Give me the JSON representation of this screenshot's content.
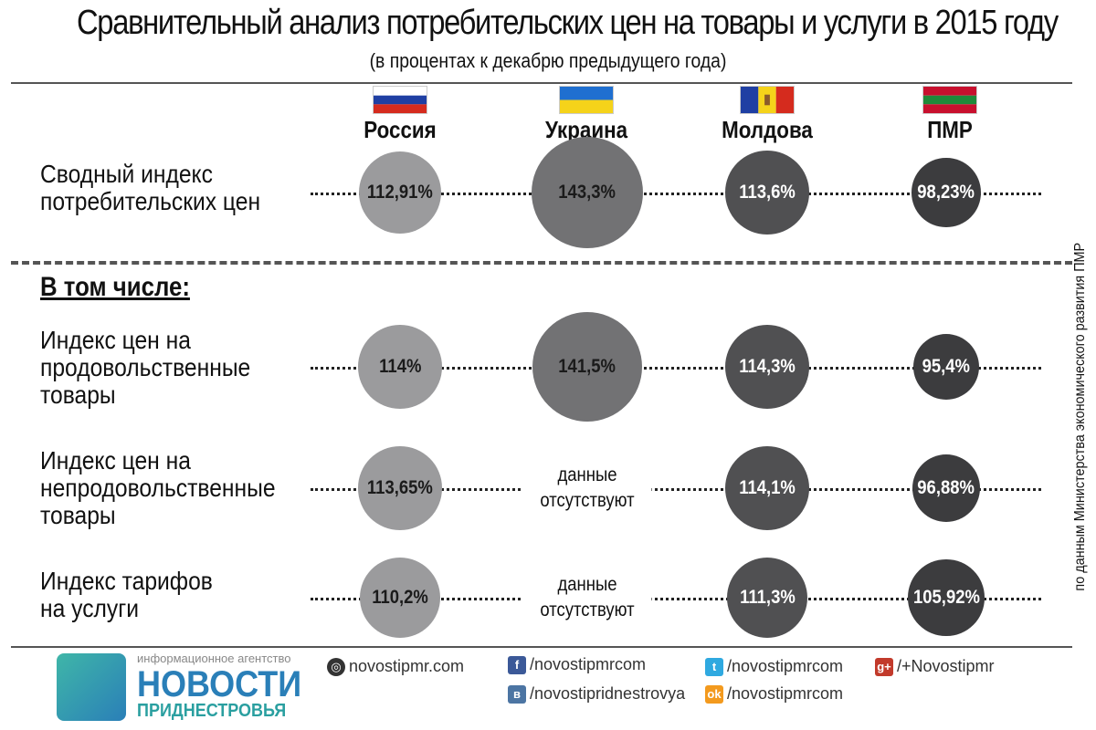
{
  "title": "Сравнительный анализ потребительских цен на товары и услуги в 2015 году",
  "subtitle": "(в процентах к декабрю предыдущего года)",
  "section_label": "В том числе:",
  "source_note": "по данным Министерства экономического развития ПМР",
  "no_data_line1": "данные",
  "no_data_line2": "отсутствуют",
  "countries": [
    {
      "name": "Россия",
      "color": "#9b9b9d"
    },
    {
      "name": "Украина",
      "color": "#727274"
    },
    {
      "name": "Молдова",
      "color": "#505052"
    },
    {
      "name": "ПМР",
      "color": "#3c3c3e"
    }
  ],
  "rows": [
    {
      "label": "Сводный индекс\nпотребительских цен",
      "values": [
        "112,91%",
        "143,3%",
        "113,6%",
        "98,23%"
      ]
    },
    {
      "label": "Индекс цен на\nпродовольственные\nтовары",
      "values": [
        "114%",
        "141,5%",
        "114,3%",
        "95,4%"
      ]
    },
    {
      "label": "Индекс цен на\nнепродовольственные\nтовары",
      "values": [
        "113,65%",
        "данные отсутствуют",
        "114,1%",
        "96,88%"
      ]
    },
    {
      "label": "Индекс тарифов\nна услуги",
      "values": [
        "110,2%",
        "данные отсутствуют",
        "111,3%",
        "105,92%"
      ]
    }
  ],
  "chart_data": {
    "type": "bubble-table",
    "title": "Сравнительный анализ потребительских цен на товары и услуги в 2015 году",
    "subtitle": "(в процентах к декабрю предыдущего года)",
    "categories": [
      "Россия",
      "Украина",
      "Молдова",
      "ПМР"
    ],
    "series": [
      {
        "name": "Сводный индекс потребительских цен",
        "values": [
          112.91,
          143.3,
          113.6,
          98.23
        ]
      },
      {
        "name": "Индекс цен на продовольственные товары",
        "values": [
          114,
          141.5,
          114.3,
          95.4
        ]
      },
      {
        "name": "Индекс цен на непродовольственные товары",
        "values": [
          113.65,
          null,
          114.1,
          96.88
        ]
      },
      {
        "name": "Индекс тарифов на услуги",
        "values": [
          110.2,
          null,
          111.3,
          105.92
        ]
      }
    ]
  },
  "footer": {
    "agency_small": "информационное агентство",
    "agency_big": "НОВОСТИ",
    "agency_sub": "ПРИДНЕСТРОВЬЯ",
    "links": [
      {
        "icon": "web-icon",
        "text": "novostipmr.com",
        "color": "#333333"
      },
      {
        "icon": "facebook-icon",
        "text": "/novostipmrcom",
        "color": "#3b5998"
      },
      {
        "icon": "vk-icon",
        "text": "/novostipridnestrovya",
        "color": "#4c75a3"
      },
      {
        "icon": "twitter-icon",
        "text": "/novostipmrcom",
        "color": "#2fa9e0"
      },
      {
        "icon": "odnoklassniki-icon",
        "text": "/novostipmrcom",
        "color": "#f39a1e"
      },
      {
        "icon": "googleplus-icon",
        "text": "/+Novostipmr",
        "color": "#c23a2b"
      }
    ]
  }
}
